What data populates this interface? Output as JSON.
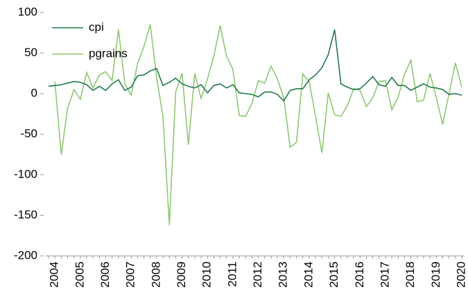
{
  "chart_data": {
    "type": "line",
    "categories": [
      null,
      "2004",
      null,
      null,
      null,
      "2005",
      null,
      null,
      null,
      "2006",
      null,
      null,
      null,
      "2007",
      null,
      null,
      null,
      "2008",
      null,
      null,
      null,
      "2009",
      null,
      null,
      null,
      "2010",
      null,
      null,
      null,
      "2011",
      null,
      null,
      null,
      "2012",
      null,
      null,
      null,
      "2013",
      null,
      null,
      null,
      "2014",
      null,
      null,
      null,
      "2015",
      null,
      null,
      null,
      "2016",
      null,
      null,
      null,
      "2017",
      null,
      null,
      null,
      "2018",
      null,
      null,
      null,
      "2019",
      null,
      null,
      null,
      "2020"
    ],
    "series": [
      {
        "name": "cpi",
        "color": "#1e7b4a",
        "values": [
          9,
          10,
          11,
          13,
          15,
          14,
          11,
          4,
          9,
          4,
          12,
          17,
          4,
          8,
          22,
          23,
          28,
          31,
          10,
          14,
          19,
          12,
          9,
          7,
          11,
          1,
          10,
          12,
          7,
          11,
          1,
          0,
          -1,
          -4,
          2,
          2,
          -1,
          -9,
          4,
          6,
          6,
          17,
          23,
          32,
          48,
          79,
          12,
          8,
          5,
          6,
          13,
          21,
          11,
          9,
          20,
          10,
          10,
          4,
          8,
          12,
          8,
          7,
          5,
          -1,
          0,
          -2
        ]
      },
      {
        "name": "pgrains",
        "color": "#8cc96e",
        "values": [
          null,
          15,
          -75,
          -18,
          5,
          -7,
          26,
          7,
          23,
          27,
          16,
          79,
          12,
          -2,
          37,
          58,
          85,
          20,
          -28,
          -162,
          2,
          25,
          -63,
          25,
          -6,
          18,
          46,
          84,
          46,
          30,
          -27,
          -28,
          -12,
          16,
          13,
          34,
          18,
          -5,
          -66,
          -60,
          24,
          15,
          -28,
          -73,
          1,
          -26,
          -28,
          -15,
          6,
          4,
          -16,
          -5,
          15,
          16,
          -20,
          -4,
          24,
          41,
          -10,
          -8,
          25,
          -5,
          -38,
          0,
          38,
          8
        ]
      }
    ],
    "ylim": [
      -200,
      100
    ],
    "yticks": [
      -200,
      -150,
      -100,
      -50,
      0,
      50,
      100
    ],
    "grid": false,
    "legend": "upper left"
  }
}
